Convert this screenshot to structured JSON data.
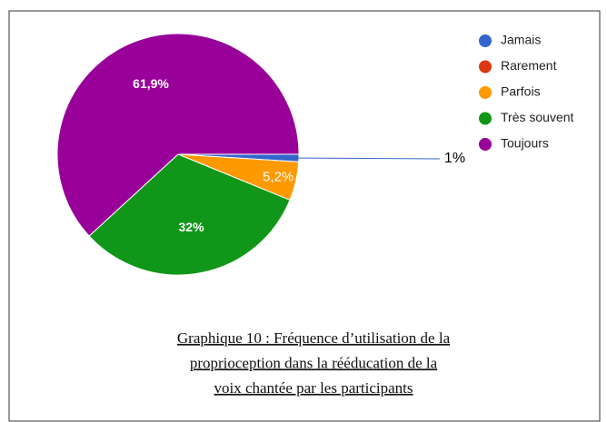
{
  "chart_data": {
    "type": "pie",
    "categories": [
      "Jamais",
      "Rarement",
      "Parfois",
      "Très souvent",
      "Toujours"
    ],
    "values": [
      1,
      0,
      5.2,
      32,
      61.9
    ],
    "value_labels": [
      "1%",
      null,
      "5,2%",
      "32%",
      "61,9%"
    ],
    "colors": [
      "#3366cc",
      "#dc3912",
      "#ff9900",
      "#109618",
      "#990099"
    ],
    "legend": "right",
    "caption": [
      "Graphique 10 : Fréquence d’utilisation de la",
      "proprioception dans la rééducation de la",
      "voix chantée par les participants"
    ]
  }
}
